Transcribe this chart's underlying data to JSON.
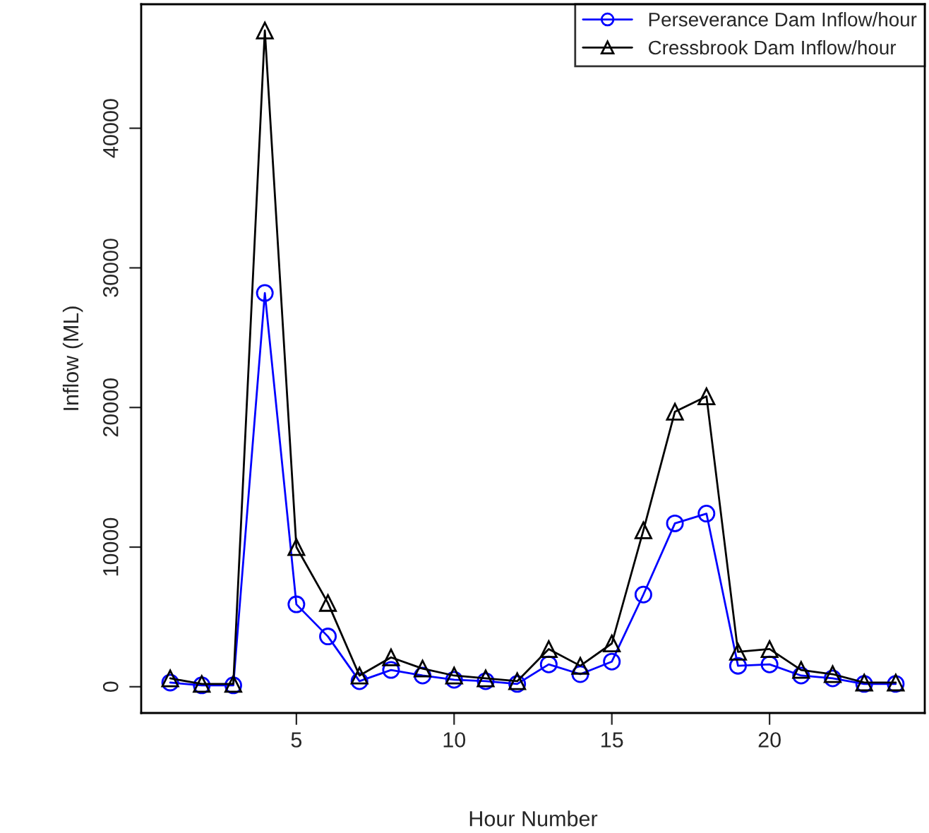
{
  "chart_data": {
    "type": "line",
    "xlabel": "Hour Number",
    "ylabel": "Inflow (ML)",
    "x": [
      1,
      2,
      3,
      4,
      5,
      6,
      7,
      8,
      9,
      10,
      11,
      12,
      13,
      14,
      15,
      16,
      17,
      18,
      19,
      20,
      21,
      22,
      23,
      24
    ],
    "series": [
      {
        "name": "Perseverance Dam Inflow/hour",
        "color": "#0000ff",
        "marker": "circle",
        "values": [
          300,
          100,
          100,
          28200,
          5900,
          3600,
          400,
          1200,
          800,
          500,
          400,
          200,
          1600,
          900,
          1800,
          6600,
          11700,
          12400,
          1500,
          1600,
          800,
          600,
          200,
          200
        ]
      },
      {
        "name": "Cressbrook Dam Inflow/hour",
        "color": "#000000",
        "marker": "triangle",
        "values": [
          600,
          200,
          200,
          47000,
          10000,
          6000,
          800,
          2100,
          1300,
          800,
          600,
          400,
          2700,
          1500,
          3100,
          11200,
          19700,
          20800,
          2500,
          2700,
          1200,
          900,
          300,
          300
        ]
      }
    ],
    "xlim": [
      0.08,
      24.92
    ],
    "xticks": [
      5,
      10,
      15,
      20
    ],
    "ylim": [
      -1880,
      48880
    ],
    "yticks": [
      0,
      10000,
      20000,
      30000,
      40000
    ],
    "grid": false,
    "legend": "top right",
    "line_style": "solid"
  }
}
